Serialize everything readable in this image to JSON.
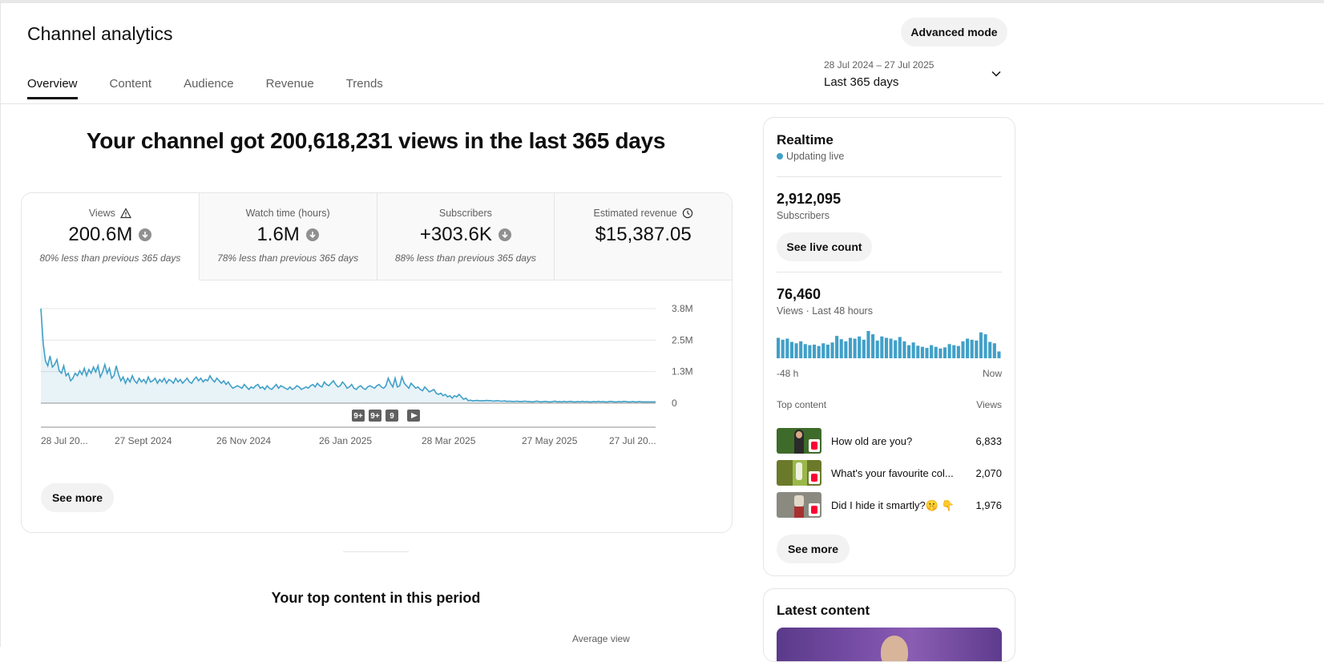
{
  "header": {
    "title": "Channel analytics",
    "advanced_mode_label": "Advanced mode",
    "tabs": [
      {
        "label": "Overview",
        "active": true
      },
      {
        "label": "Content",
        "active": false
      },
      {
        "label": "Audience",
        "active": false
      },
      {
        "label": "Revenue",
        "active": false
      },
      {
        "label": "Trends",
        "active": false
      }
    ],
    "date_range": "28 Jul 2024 – 27 Jul 2025",
    "date_label": "Last 365 days"
  },
  "overview": {
    "headline": "Your channel got 200,618,231 views in the last 365 days",
    "metrics": [
      {
        "title": "Views",
        "value": "200.6M",
        "note": "80% less than previous 365 days",
        "icon": "warning-icon",
        "trend": "down"
      },
      {
        "title": "Watch time (hours)",
        "value": "1.6M",
        "note": "78% less than previous 365 days",
        "trend": "down"
      },
      {
        "title": "Subscribers",
        "value": "+303.6K",
        "note": "88% less than previous 365 days",
        "trend": "down"
      },
      {
        "title": "Estimated revenue",
        "value": "$15,387.05",
        "note": "",
        "icon": "clock-icon"
      }
    ],
    "see_more_label": "See more",
    "top_content_title": "Your top content in this period",
    "average_view_label": "Average view"
  },
  "chart_data": {
    "type": "area",
    "series_color": "#41a0c8",
    "x_tick_labels": [
      "28 Jul 20...",
      "27 Sept 2024",
      "26 Nov 2024",
      "26 Jan 2025",
      "28 Mar 2025",
      "27 May 2025",
      "27 Jul 20..."
    ],
    "y_tick_labels": [
      "3.8M",
      "2.5M",
      "1.3M",
      "0"
    ],
    "ylim": [
      0,
      3800000
    ],
    "markers": [
      "9+",
      "9+",
      "9"
    ],
    "grid": true,
    "values": [
      3800000,
      2400000,
      1700000,
      1500000,
      1900000,
      1450000,
      1550000,
      1750000,
      1300000,
      1200000,
      1500000,
      1100000,
      1200000,
      900000,
      1000000,
      1200000,
      1100000,
      1300000,
      1150000,
      1400000,
      1100000,
      1350000,
      1200000,
      1450000,
      1250000,
      1500000,
      1050000,
      1250000,
      1550000,
      1200000,
      1400000,
      1000000,
      1100000,
      1500000,
      1150000,
      900000,
      1050000,
      800000,
      1000000,
      850000,
      1100000,
      900000,
      800000,
      1000000,
      850000,
      950000,
      800000,
      1050000,
      850000,
      900000,
      1000000,
      800000,
      950000,
      850000,
      1000000,
      800000,
      950000,
      900000,
      800000,
      1000000,
      850000,
      950000,
      800000,
      900000,
      1000000,
      850000,
      800000,
      950000,
      1050000,
      900000,
      1000000,
      850000,
      950000,
      900000,
      1100000,
      950000,
      850000,
      1000000,
      900000,
      800000,
      900000,
      750000,
      850000,
      700000,
      600000,
      650000,
      700000,
      650000,
      600000,
      750000,
      650000,
      550000,
      650000,
      600000,
      700000,
      750000,
      600000,
      650000,
      550000,
      700000,
      600000,
      550000,
      650000,
      750000,
      600000,
      700000,
      650000,
      600000,
      550000,
      650000,
      550000,
      600000,
      700000,
      650000,
      550000,
      600000,
      650000,
      600000,
      700000,
      750000,
      650000,
      800000,
      700000,
      650000,
      850000,
      750000,
      700000,
      800000,
      900000,
      750000,
      650000,
      700000,
      850000,
      750000,
      600000,
      650000,
      750000,
      600000,
      550000,
      650000,
      700000,
      600000,
      550000,
      650000,
      700000,
      650000,
      600000,
      700000,
      750000,
      650000,
      600000,
      700000,
      1000000,
      800000,
      650000,
      1000000,
      650000,
      700000,
      1050000,
      800000,
      700000,
      600000,
      800000,
      700000,
      600000,
      650000,
      550000,
      500000,
      650000,
      550000,
      450000,
      500000,
      550000,
      400000,
      350000,
      400000,
      300000,
      350000,
      250000,
      300000,
      200000,
      300000,
      250000,
      350000,
      250000,
      150000,
      200000,
      100000,
      120000,
      90000,
      100000,
      110000,
      90000,
      100000,
      90000,
      110000,
      100000,
      100000,
      80000,
      90000,
      100000,
      80000,
      80000,
      90000,
      70000,
      80000,
      70000,
      60000,
      80000,
      70000,
      60000,
      70000,
      80000,
      60000,
      60000,
      50000,
      60000,
      80000,
      60000,
      50000,
      60000,
      70000,
      50000,
      50000,
      60000,
      80000,
      50000,
      60000,
      50000,
      70000,
      50000,
      60000,
      70000,
      50000,
      50000,
      60000,
      50000,
      70000,
      50000,
      60000,
      50000,
      50000,
      60000,
      50000,
      70000,
      50000,
      60000,
      50000,
      50000,
      70000,
      60000,
      50000,
      50000,
      60000,
      50000,
      70000,
      60000,
      50000,
      50000,
      60000,
      50000,
      50000,
      60000,
      50000,
      50000,
      50000,
      50000,
      50000,
      50000,
      50000
    ]
  },
  "realtime": {
    "title": "Realtime",
    "status": "Updating live",
    "subscribers_value": "2,912,095",
    "subscribers_label": "Subscribers",
    "live_count_label": "See live count",
    "views_value": "76,460",
    "views_label": "Views · Last 48 hours",
    "bar_values": [
      0.75,
      0.68,
      0.72,
      0.6,
      0.55,
      0.62,
      0.52,
      0.48,
      0.5,
      0.45,
      0.55,
      0.5,
      0.58,
      0.82,
      0.7,
      0.62,
      0.75,
      0.72,
      0.8,
      0.68,
      1.0,
      0.88,
      0.65,
      0.8,
      0.75,
      0.72,
      0.66,
      0.78,
      0.62,
      0.48,
      0.58,
      0.46,
      0.42,
      0.38,
      0.48,
      0.42,
      0.36,
      0.4,
      0.52,
      0.48,
      0.45,
      0.62,
      0.72,
      0.68,
      0.65,
      0.95,
      0.88,
      0.6,
      0.55,
      0.25
    ],
    "axis_left": "-48 h",
    "axis_right": "Now",
    "top_content_label": "Top content",
    "views_col_label": "Views",
    "top_content": [
      {
        "title": "How old are you?",
        "views": "6,833",
        "thumb_color": "#3e6b2a"
      },
      {
        "title": "What's your favourite col...",
        "views": "2,070",
        "thumb_color": "#6b7a2a"
      },
      {
        "title": "Did I hide it smartly?🤫 👇",
        "views": "1,976",
        "thumb_color": "#8a8a80"
      }
    ],
    "see_more_label": "See more"
  },
  "latest_content": {
    "title": "Latest content"
  }
}
